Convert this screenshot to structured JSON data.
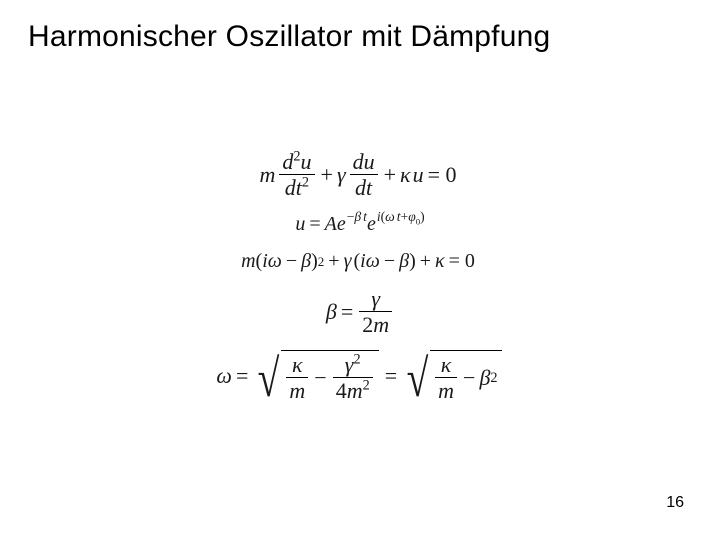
{
  "title": "Harmonischer Oszillator mit Dämpfung",
  "page_number": "16",
  "colors": {
    "background": "#ffffff",
    "text": "#000000"
  },
  "typography": {
    "title_font": "Arial",
    "title_size_pt": 30,
    "title_weight": 400,
    "math_font": "Times New Roman",
    "math_size_pt": 22
  },
  "equations": [
    {
      "id": "eq1",
      "type": "equation",
      "tex": "m\\,\\frac{d^{2}u}{dt^{2}} + \\gamma\\,\\frac{du}{dt} + \\kappa u = 0",
      "parts": {
        "m": "m",
        "gamma": "γ",
        "kappa": "κ",
        "u": "u",
        "frac1_num": "d",
        "frac1_num_exp": "2",
        "frac1_num_var": "u",
        "frac1_den": "dt",
        "frac1_den_exp": "2",
        "frac2_num": "du",
        "frac2_den": "dt",
        "eq": "= 0"
      }
    },
    {
      "id": "eq2",
      "type": "equation",
      "tex": "u = A e^{-\\beta t} e^{\\,i(\\omega t + \\varphi_{0})}",
      "parts": {
        "u": "u",
        "eq": "=",
        "A": "A",
        "e1": "e",
        "exp1_minus": "−",
        "exp1_beta": "β",
        "exp1_t": "t",
        "e2": "e",
        "exp2": "i",
        "exp2_open": "(",
        "exp2_omega": "ω",
        "exp2_t": "t",
        "exp2_plus": "+",
        "exp2_phi": "φ",
        "exp2_sub0": "0",
        "exp2_close": ")"
      }
    },
    {
      "id": "eq3",
      "type": "equation",
      "tex": "m(i\\omega - \\beta)^{2} + \\gamma(i\\omega - \\beta) + \\kappa = 0",
      "parts": {
        "m": "m",
        "open1": "(",
        "i1": "i",
        "omega1": "ω",
        "minus1": "−",
        "beta1": "β",
        "close1": ")",
        "pow2": "2",
        "plus1": "+",
        "gamma": "γ",
        "open2": "(",
        "i2": "i",
        "omega2": "ω",
        "minus2": "−",
        "beta2": "β",
        "close2": ")",
        "plus2": "+",
        "kappa": "κ",
        "eq": "= 0"
      }
    },
    {
      "id": "eq4",
      "type": "equation",
      "tex": "\\beta = \\frac{\\gamma}{2m}",
      "parts": {
        "beta": "β",
        "eq": "=",
        "num": "γ",
        "den_2": "2",
        "den_m": "m"
      }
    },
    {
      "id": "eq5",
      "type": "equation",
      "tex": "\\omega = \\sqrt{\\frac{\\kappa}{m} - \\frac{\\gamma^{2}}{4m^{2}}} = \\sqrt{\\frac{\\kappa}{m} - \\beta^{2}}",
      "parts": {
        "omega": "ω",
        "eq1": "=",
        "r1_t1_num": "κ",
        "r1_t1_den": "m",
        "r1_minus": "−",
        "r1_t2_num": "γ",
        "r1_t2_num_exp": "2",
        "r1_t2_den_4": "4",
        "r1_t2_den_m": "m",
        "r1_t2_den_exp": "2",
        "eq2": "=",
        "r2_t1_num": "κ",
        "r2_t1_den": "m",
        "r2_minus": "−",
        "r2_beta": "β",
        "r2_beta_exp": "2"
      }
    }
  ]
}
